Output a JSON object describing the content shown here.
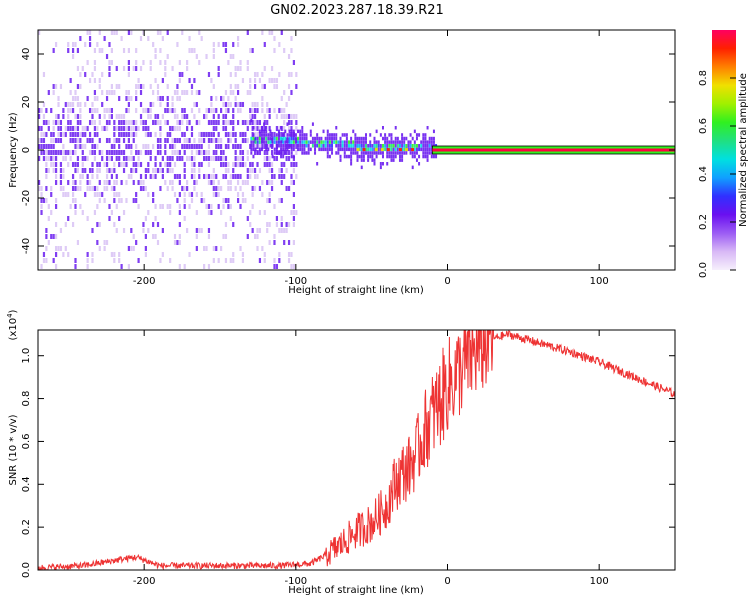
{
  "title": "GN02.2023.287.18.39.R21",
  "colors": {
    "snr_line": "#ee3333",
    "spec_low": "#c8a8f0",
    "spec_mid": "#6a1cf0",
    "axis": "#000000"
  },
  "chart_data": [
    {
      "type": "heatmap",
      "xlabel": "Height of straight line (km)",
      "ylabel": "Frequency (Hz)",
      "xlim": [
        -270,
        150
      ],
      "ylim": [
        -50,
        50
      ],
      "xticks": [
        -200,
        -100,
        0,
        100
      ],
      "yticks": [
        -40,
        -20,
        0,
        20,
        40
      ],
      "colorbar": {
        "label": "Normalized spectral amplitude",
        "range": [
          0.0,
          1.0
        ],
        "ticks": [
          0.0,
          0.2,
          0.4,
          0.6,
          0.8
        ],
        "colormap": [
          "#f6f0fc",
          "#d8b8f6",
          "#9c5cf4",
          "#6a10f0",
          "#3030ff",
          "#10a0ff",
          "#00e0e0",
          "#20e080",
          "#30f020",
          "#a0f000",
          "#f0e000",
          "#ff8000",
          "#ff2000",
          "#ff0060"
        ]
      },
      "features": [
        {
          "x_range": [
            -270,
            -100
          ],
          "freq_range": [
            -50,
            50
          ],
          "level": "broadband low amplitude, concentrated near 0 Hz"
        },
        {
          "x_range": [
            -130,
            -10
          ],
          "freq_range": [
            -5,
            10
          ],
          "level": "converging to 0 Hz, high amplitude"
        },
        {
          "x_range": [
            -10,
            150
          ],
          "freq": 0,
          "level": "narrow band at 0 Hz, maximum amplitude"
        }
      ]
    },
    {
      "type": "line",
      "xlabel": "Height of straight line (km)",
      "ylabel": "SNR (10 * v/v)",
      "scale_label": "(x10",
      "scale_exp": "4",
      "scale_close": ")",
      "xlim": [
        -270,
        150
      ],
      "ylim": [
        0.0,
        1.12
      ],
      "xticks": [
        -200,
        -100,
        0,
        100
      ],
      "yticks": [
        0.0,
        0.2,
        0.4,
        0.6,
        0.8,
        1.0
      ],
      "series": [
        {
          "x": [
            -270,
            -240,
            -215,
            -205,
            -190,
            -150,
            -110,
            -90,
            -80,
            -70,
            -60,
            -50,
            -40,
            -35,
            -30,
            -25,
            -20,
            -15,
            -10,
            -5,
            0,
            5,
            10,
            20,
            30,
            40,
            60,
            80,
            100,
            120,
            140,
            150
          ],
          "y": [
            0.01,
            0.02,
            0.05,
            0.06,
            0.02,
            0.02,
            0.02,
            0.03,
            0.07,
            0.12,
            0.18,
            0.22,
            0.3,
            0.4,
            0.45,
            0.48,
            0.55,
            0.65,
            0.72,
            0.78,
            0.86,
            0.9,
            0.95,
            1.03,
            1.08,
            1.1,
            1.06,
            1.02,
            0.97,
            0.91,
            0.85,
            0.82
          ]
        }
      ]
    }
  ]
}
